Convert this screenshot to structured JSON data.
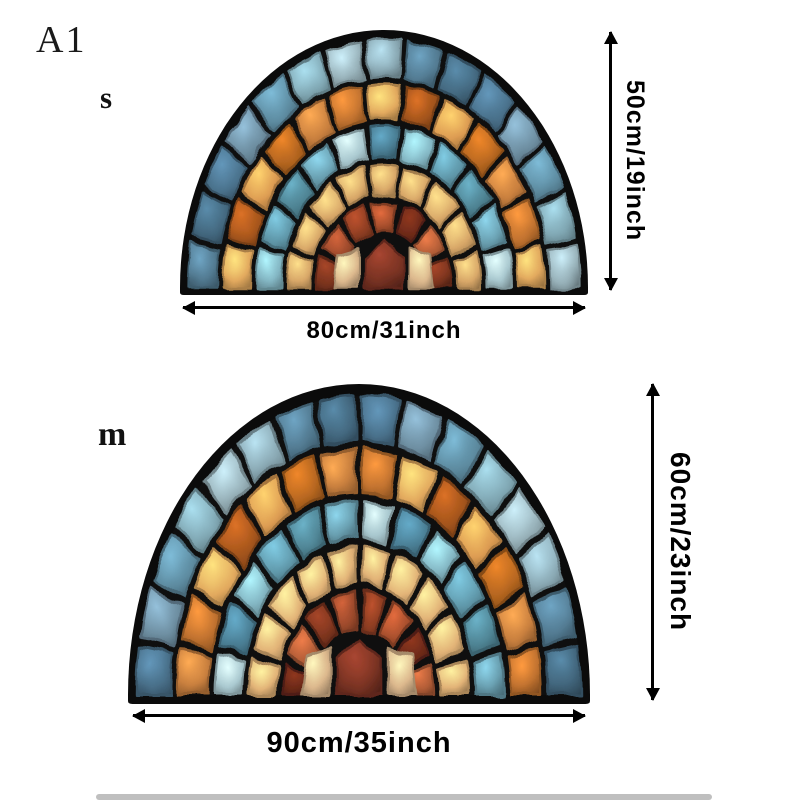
{
  "variant_label": "A1",
  "sizes": [
    {
      "label": "s",
      "height_label": "50cm/19inch",
      "width_label": "80cm/31inch"
    },
    {
      "label": "m",
      "height_label": "60cm/23inch",
      "width_label": "90cm/35inch"
    }
  ],
  "dimension_arrow_color": "#000000",
  "mat_colors": {
    "grout": "#0f0f0f",
    "border": "#0b0b0b",
    "keystone": "#7d3424",
    "flank": "#dcb88d",
    "palettes": {
      "outer": [
        "#6e8fa2",
        "#527a91",
        "#7fa6b2",
        "#49708a",
        "#8aa9b4",
        "#5d8ba0",
        "#43687f",
        "#98b2ba"
      ],
      "orange": [
        "#c87f3e",
        "#b2641f",
        "#dd9c52",
        "#a3541c",
        "#e2a95e",
        "#c1722f"
      ],
      "teal": [
        "#5f97a9",
        "#83b6c3",
        "#4a7e94",
        "#a9c8cf",
        "#699fb0",
        "#4f8494"
      ],
      "tan": [
        "#d8a768",
        "#c08348",
        "#e2b377",
        "#b37a3c",
        "#cf9a5e"
      ],
      "rust": [
        "#9d4a2c",
        "#7c341e",
        "#b05c36",
        "#6b2918",
        "#a84f2d",
        "#8d3d22"
      ]
    }
  }
}
